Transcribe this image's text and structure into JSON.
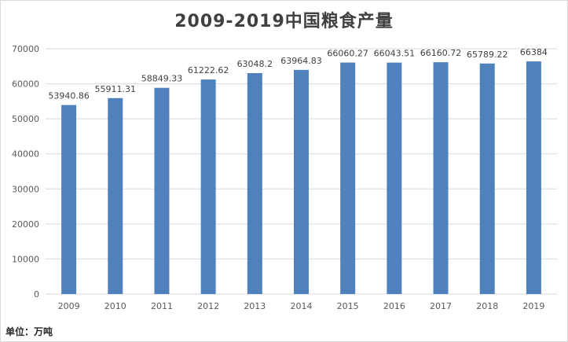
{
  "chart_title": "2009-2019中国粮食产量",
  "unit_note": "单位：万吨",
  "colors": {
    "bar": "#4f81bd",
    "grid": "#d9d9d9",
    "axis_text": "#595959",
    "label_text": "#404040"
  },
  "chart_data": {
    "type": "bar",
    "title": "2009-2019中国粮食产量",
    "xlabel": "",
    "ylabel": "",
    "categories": [
      "2009",
      "2010",
      "2011",
      "2012",
      "2013",
      "2014",
      "2015",
      "2016",
      "2017",
      "2018",
      "2019"
    ],
    "values": [
      53940.86,
      55911.31,
      58849.33,
      61222.62,
      63048.2,
      63964.83,
      66060.27,
      66043.51,
      66160.72,
      65789.22,
      66384
    ],
    "value_labels": [
      "53940.86",
      "55911.31",
      "58849.33",
      "61222.62",
      "63048.2",
      "63964.83",
      "66060.27",
      "66043.51",
      "66160.72",
      "65789.22",
      "66384"
    ],
    "yticks": [
      "0",
      "10000",
      "20000",
      "30000",
      "40000",
      "50000",
      "60000",
      "70000"
    ],
    "ylim": [
      0,
      70000
    ],
    "grid": true,
    "legend": "none"
  }
}
